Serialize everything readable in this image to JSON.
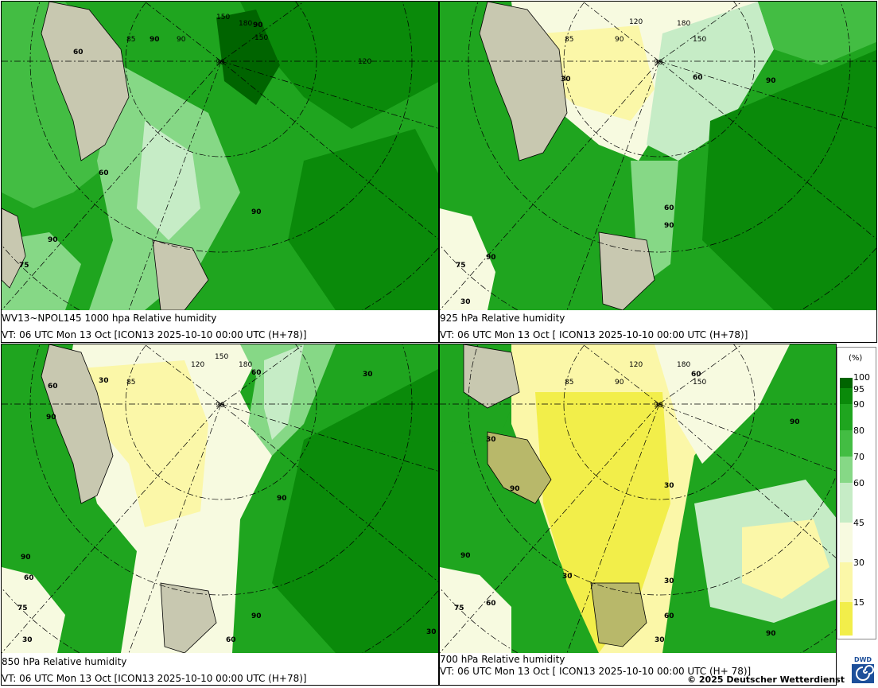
{
  "panels": [
    {
      "caption": "WV13~NPOL145 1000 hpa Relative humidity",
      "vt": "VT: 06 UTC Mon  13 Oct [ICON13 2025-10-10 00:00 UTC  (H+78)]"
    },
    {
      "caption": "925 hPa Relative humidity",
      "vt": "VT: 06 UTC Mon  13 Oct [ ICON13 2025-10-10 00:00 UTC  (H+78)]"
    },
    {
      "caption": "850 hPa  Relative humidity",
      "vt": "VT: 06 UTC Mon  13 Oct [ICON13 2025-10-10 00:00 UTC  (H+78)]"
    },
    {
      "caption": "700 hPa Relative humidity",
      "vt": "VT: 06 UTC Mon  13 Oct [ ICON13 2025-10-10 00:00 UTC  (H+ 78)]"
    }
  ],
  "grid_labels": {
    "lon": [
      "85",
      "90",
      "120",
      "150",
      "180",
      "150",
      "120",
      "90"
    ],
    "pole": "90"
  },
  "contour_labels": {
    "p1": [
      "90",
      "60",
      "60",
      "90",
      "90",
      "90",
      "75"
    ],
    "p2": [
      "85",
      "90",
      "120",
      "180",
      "150",
      "60",
      "30",
      "90",
      "60",
      "90",
      "90",
      "75",
      "30"
    ],
    "p3": [
      "85",
      "30",
      "60",
      "120",
      "150",
      "180",
      "60",
      "30",
      "90",
      "90",
      "90",
      "60",
      "75",
      "30",
      "90",
      "60",
      "30"
    ],
    "p4": [
      "85",
      "90",
      "120",
      "180",
      "60",
      "150",
      "30",
      "90",
      "30",
      "90",
      "30",
      "90",
      "60",
      "75",
      "60",
      "30",
      "30",
      "90"
    ]
  },
  "legend": {
    "unit": "(%)",
    "ticks": [
      "100",
      "95",
      "90",
      "80",
      "70",
      "60",
      "45",
      "30",
      "15"
    ],
    "colors": [
      "#006400",
      "#0a8a0a",
      "#1fa51f",
      "#43bd43",
      "#86d886",
      "#c6ecc6",
      "#f7fae0",
      "#fbf7a8",
      "#f2ee4a"
    ]
  },
  "copyright": "© 2025 Deutscher Wetterdienst",
  "logo_text": "DWD"
}
